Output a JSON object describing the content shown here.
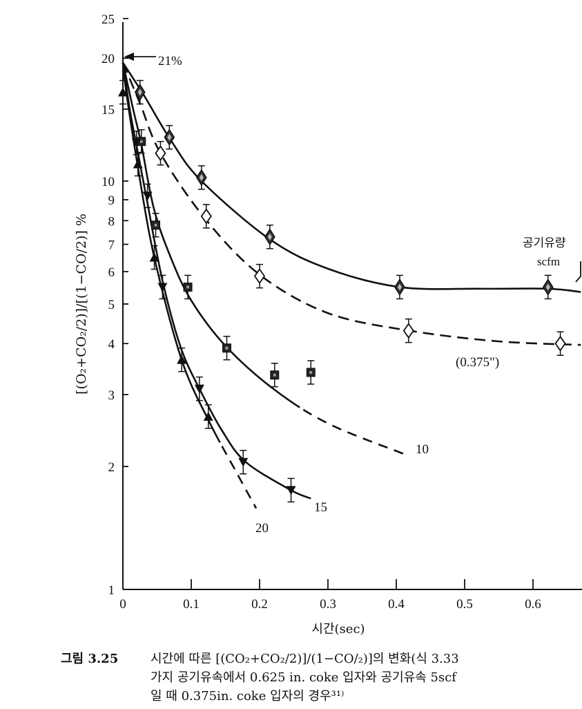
{
  "chart_data": {
    "type": "scatter",
    "xlabel": "시간(sec)",
    "ylabel": "[(O₂+CO₂/2)]/[(1−CO/2)] %",
    "xlim": [
      0,
      0.68
    ],
    "ylim": [
      1,
      25
    ],
    "y_scale": "log",
    "x_ticks": [
      "0",
      "0.1",
      "0.2",
      "0.3",
      "0.4",
      "0.5",
      "0.6"
    ],
    "y_ticks": [
      "1",
      "2",
      "3",
      "4",
      "5",
      "6",
      "7",
      "8",
      "9",
      "10",
      "15",
      "20",
      "25"
    ],
    "series": [
      {
        "marker": "diamond-filled",
        "points": [
          [
            0.025,
            16.5
          ],
          [
            0.068,
            12.8
          ],
          [
            0.115,
            10.2
          ],
          [
            0.215,
            7.3
          ],
          [
            0.405,
            5.5
          ],
          [
            0.622,
            5.5
          ]
        ],
        "curve": [
          [
            0.0,
            19.5
          ],
          [
            0.03,
            16.3
          ],
          [
            0.07,
            12.6
          ],
          [
            0.115,
            10.0
          ],
          [
            0.215,
            7.2
          ],
          [
            0.3,
            6.1
          ],
          [
            0.405,
            5.5
          ],
          [
            0.52,
            5.45
          ],
          [
            0.622,
            5.45
          ],
          [
            0.67,
            5.35
          ]
        ]
      },
      {
        "name": "(0.375\")",
        "marker": "diamond-open",
        "points": [
          [
            0.055,
            11.7
          ],
          [
            0.122,
            8.2
          ],
          [
            0.2,
            5.85
          ],
          [
            0.418,
            4.3
          ],
          [
            0.64,
            4.0
          ]
        ],
        "curve": [
          [
            0.0,
            19.5
          ],
          [
            0.025,
            15.5
          ],
          [
            0.055,
            11.7
          ],
          [
            0.12,
            8.1
          ],
          [
            0.2,
            5.9
          ],
          [
            0.3,
            4.75
          ],
          [
            0.42,
            4.3
          ],
          [
            0.55,
            4.05
          ],
          [
            0.67,
            3.97
          ]
        ]
      },
      {
        "name": "10",
        "marker": "square-filled",
        "points": [
          [
            0.027,
            12.5
          ],
          [
            0.048,
            7.8
          ],
          [
            0.095,
            5.5
          ],
          [
            0.152,
            3.9
          ],
          [
            0.222,
            3.35
          ],
          [
            0.275,
            3.4
          ]
        ],
        "curve": [
          [
            0.0,
            19.5
          ],
          [
            0.015,
            15.0
          ],
          [
            0.027,
            12.3
          ],
          [
            0.045,
            8.6
          ],
          [
            0.07,
            6.5
          ],
          [
            0.1,
            5.1
          ],
          [
            0.15,
            3.95
          ],
          [
            0.22,
            3.1
          ],
          [
            0.3,
            2.55
          ],
          [
            0.41,
            2.15
          ]
        ]
      },
      {
        "name": "15",
        "marker": "triangle-down-filled",
        "points": [
          [
            0.02,
            12.4
          ],
          [
            0.036,
            9.2
          ],
          [
            0.058,
            5.5
          ],
          [
            0.112,
            3.1
          ],
          [
            0.176,
            2.05
          ],
          [
            0.246,
            1.75
          ]
        ],
        "curve": [
          [
            0.0,
            19.5
          ],
          [
            0.01,
            15.0
          ],
          [
            0.02,
            12.2
          ],
          [
            0.035,
            9.0
          ],
          [
            0.058,
            5.7
          ],
          [
            0.085,
            3.9
          ],
          [
            0.112,
            3.1
          ],
          [
            0.145,
            2.45
          ],
          [
            0.18,
            2.05
          ],
          [
            0.246,
            1.75
          ],
          [
            0.275,
            1.67
          ]
        ]
      },
      {
        "name": "20",
        "marker": "triangle-up-filled",
        "points": [
          [
            0.0,
            16.5
          ],
          [
            0.022,
            11.0
          ],
          [
            0.046,
            6.5
          ],
          [
            0.086,
            3.65
          ],
          [
            0.125,
            2.65
          ]
        ],
        "curve": [
          [
            0.0,
            19.5
          ],
          [
            0.005,
            16.5
          ],
          [
            0.022,
            10.8
          ],
          [
            0.046,
            6.5
          ],
          [
            0.086,
            3.65
          ],
          [
            0.125,
            2.6
          ],
          [
            0.165,
            1.95
          ],
          [
            0.195,
            1.58
          ]
        ]
      }
    ],
    "annotations": {
      "pct21": "21%",
      "flow_label_1": "공기유량",
      "flow_label_2": "scfm"
    }
  },
  "caption": {
    "label": "그림 3.25",
    "line1": "시간에 따른 [(CO₂+CO₂/2)]/(1−CO/₂)]의 변화(식 3.33",
    "line2": "가지 공기유속에서  0.625  in.  coke 입자와 공기유속  5scf",
    "line3": "일  때  0.375in.  coke 입자의  경우³¹⁾"
  }
}
